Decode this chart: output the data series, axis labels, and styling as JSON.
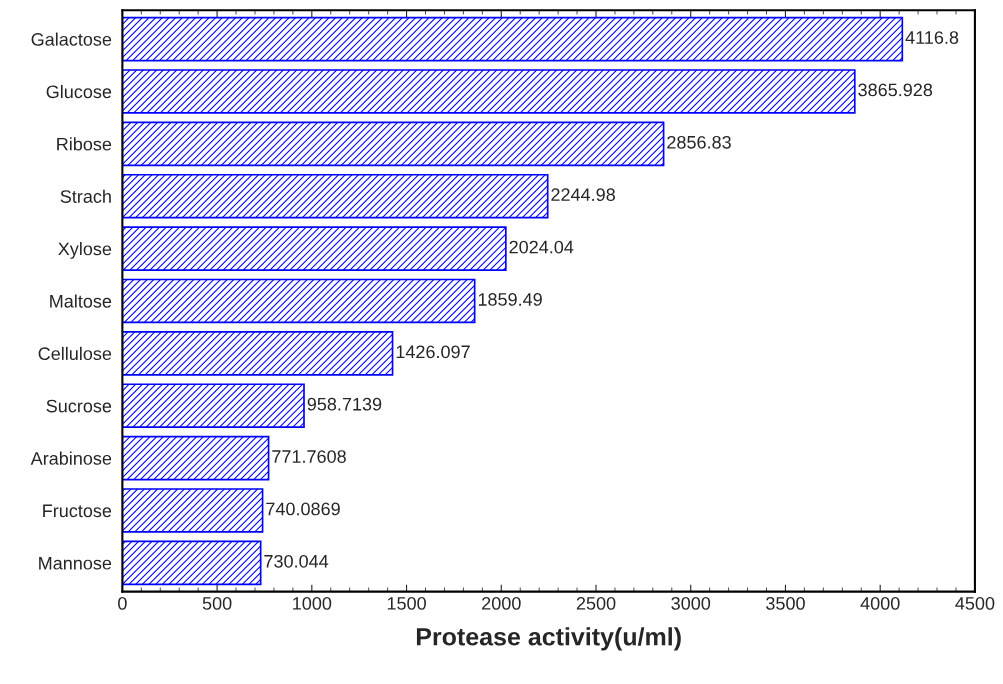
{
  "chart_data": {
    "type": "bar",
    "orientation": "horizontal",
    "xlabel": "Protease activity(u/ml)",
    "categories": [
      "Galactose",
      "Glucose",
      "Ribose",
      "Strach",
      "Xylose",
      "Maltose",
      "Cellulose",
      "Sucrose",
      "Arabinose",
      "Fructose",
      "Mannose"
    ],
    "values": [
      4116.8,
      3865.928,
      2856.83,
      2244.98,
      2024.04,
      1859.49,
      1426.097,
      958.7139,
      771.7608,
      740.0869,
      730.044
    ],
    "color": "#0000ff",
    "data_labels": true,
    "xlim": [
      0,
      4500
    ],
    "xticks": [
      0,
      500,
      1000,
      1500,
      2000,
      2500,
      3000,
      3500,
      4000,
      4500
    ],
    "grid": false,
    "legend": false
  }
}
